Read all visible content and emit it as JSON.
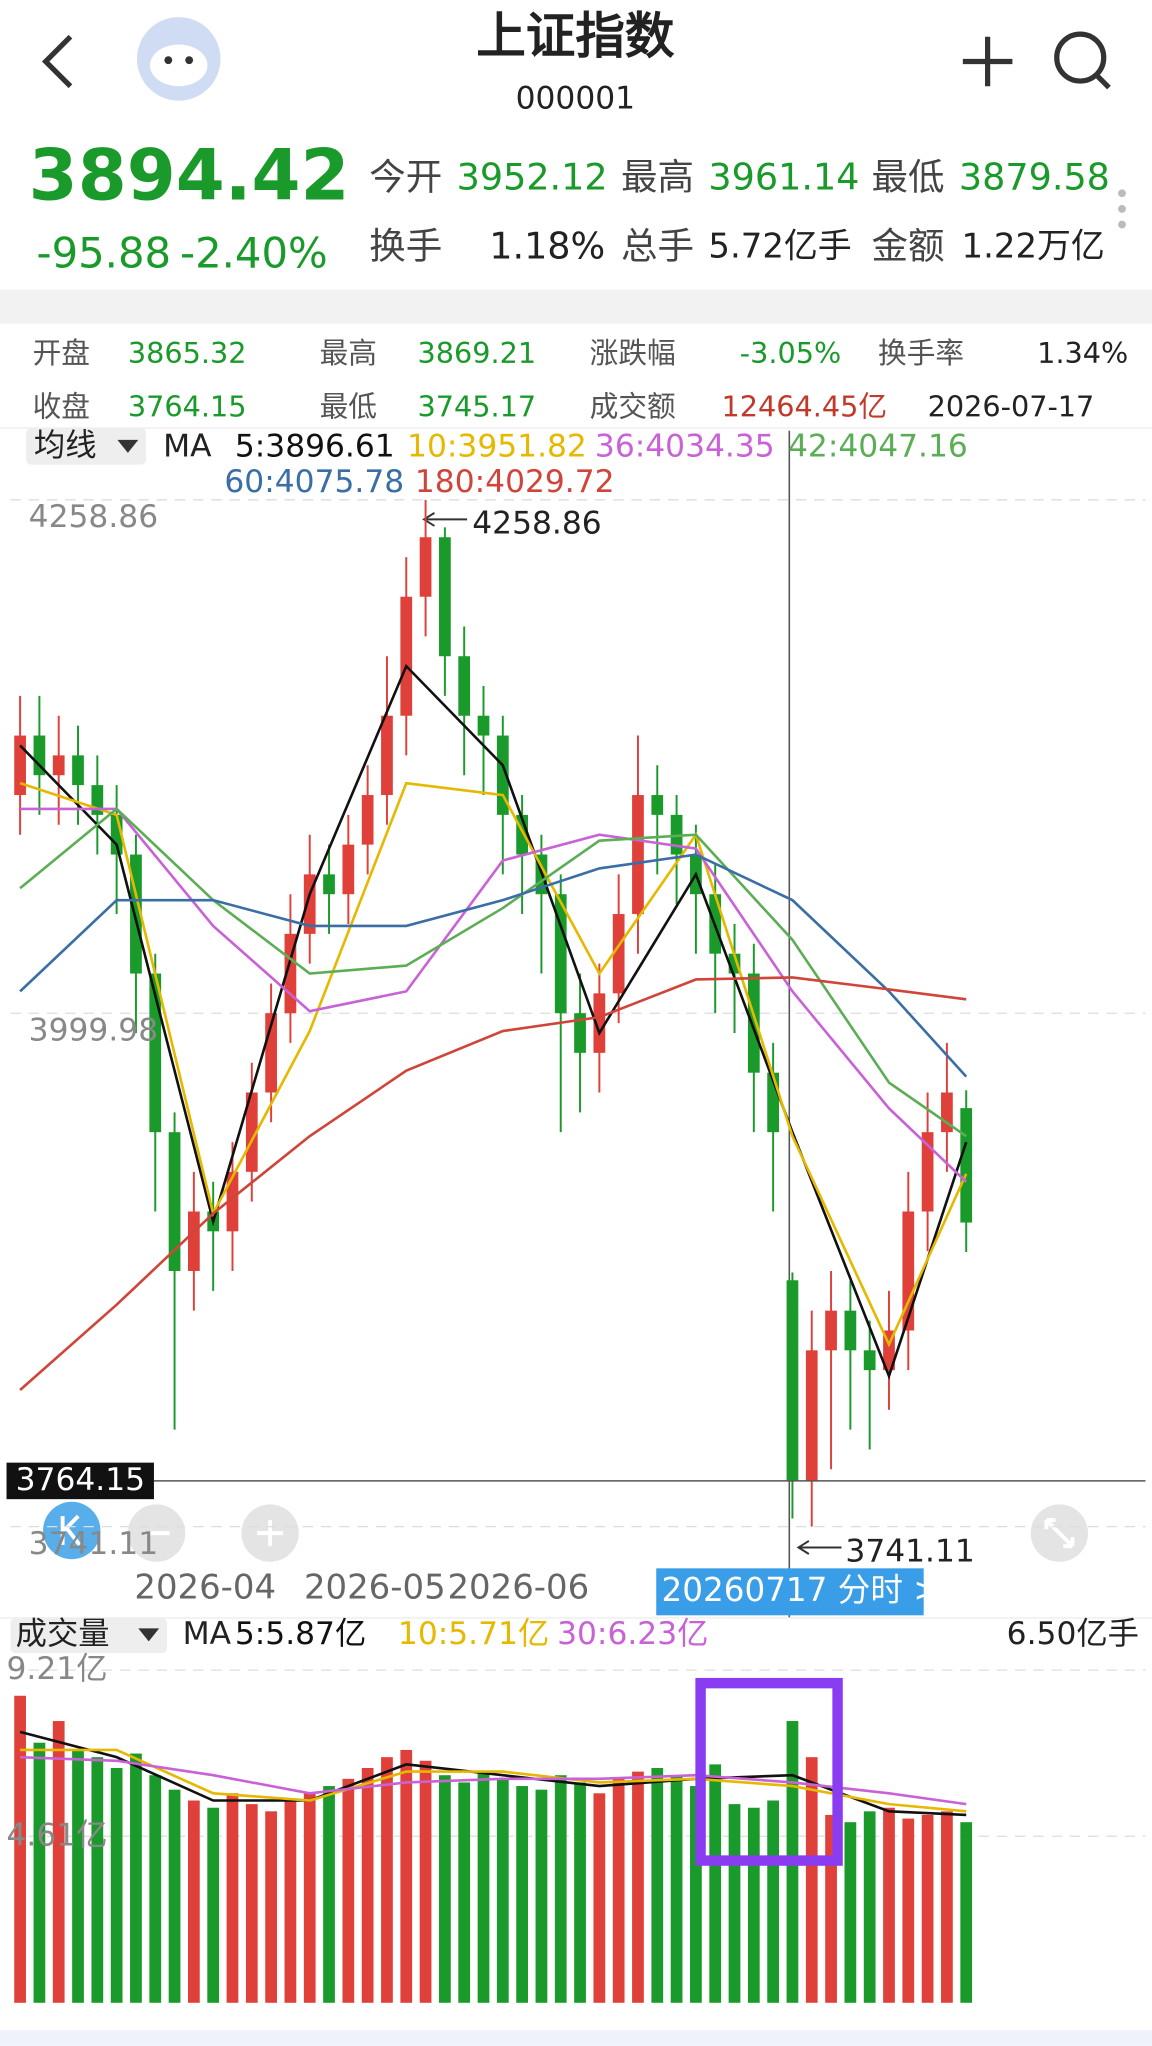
{
  "header": {
    "title": "上证指数",
    "code": "000001"
  },
  "quote": {
    "price": "3894.42",
    "change": "-95.88",
    "change_pct": "-2.40%",
    "stats": [
      {
        "label": "今开",
        "value": "3952.12"
      },
      {
        "label": "最高",
        "value": "3961.14"
      },
      {
        "label": "最低",
        "value": "3879.58"
      },
      {
        "label": "换手",
        "value": "1.18%"
      },
      {
        "label": "总手",
        "value": "5.72亿手"
      },
      {
        "label": "金额",
        "value": "1.22万亿"
      }
    ]
  },
  "day_info": {
    "items": [
      {
        "label": "开盘",
        "value": "3865.32"
      },
      {
        "label": "最高",
        "value": "3869.21"
      },
      {
        "label": "涨跌幅",
        "value": "-3.05%"
      },
      {
        "label": "换手率",
        "value": "1.34%"
      },
      {
        "label": "收盘",
        "value": "3764.15"
      },
      {
        "label": "最低",
        "value": "3745.17"
      },
      {
        "label": "成交额",
        "value": "12464.45亿"
      }
    ],
    "date": "2026-07-17"
  },
  "kline": {
    "type": "candlestick",
    "indicator_button": "均线",
    "ma_title": "MA",
    "ylim": [
      3741.11,
      4258.86
    ],
    "yticks": [
      4258.86,
      3999.98,
      3741.11
    ],
    "open": [
      4110,
      4140,
      4120,
      4130,
      4115,
      4100,
      4080,
      4020,
      3940,
      3870,
      3900,
      3890,
      3920,
      3960,
      4000,
      4040,
      4070,
      4060,
      4085,
      4110,
      4150,
      4210,
      4240,
      4180,
      4150,
      4140,
      4100,
      4080,
      4060,
      4000,
      3980,
      4010,
      4050,
      4110,
      4100,
      4080,
      4060,
      4030,
      4020,
      3970,
      3865.32,
      3764.15,
      3830,
      3850,
      3830,
      3820,
      3840,
      3900,
      3940,
      3952.12
    ],
    "close": [
      4140,
      4120,
      4130,
      4115,
      4100,
      4080,
      4020,
      3940,
      3870,
      3900,
      3890,
      3920,
      3960,
      4000,
      4040,
      4070,
      4060,
      4085,
      4110,
      4150,
      4210,
      4240,
      4180,
      4150,
      4140,
      4100,
      4080,
      4060,
      4000,
      3980,
      4010,
      4050,
      4110,
      4100,
      4080,
      4060,
      4030,
      4020,
      3970,
      3940,
      3764.15,
      3830,
      3850,
      3830,
      3820,
      3840,
      3900,
      3940,
      3960,
      3894.42
    ],
    "high": [
      4160,
      4160,
      4150,
      4145,
      4130,
      4115,
      4090,
      4030,
      3950,
      3920,
      3915,
      3935,
      3975,
      4015,
      4060,
      4090,
      4085,
      4100,
      4125,
      4180,
      4230,
      4258.86,
      4245,
      4195,
      4165,
      4150,
      4110,
      4090,
      4070,
      4020,
      4025,
      4070,
      4140,
      4125,
      4110,
      4095,
      4075,
      4045,
      4035,
      3985,
      3869.21,
      3850,
      3870,
      3865,
      3845,
      3860,
      3920,
      3960,
      3985,
      3961.14
    ],
    "low": [
      4090,
      4100,
      4095,
      4095,
      4080,
      4050,
      3990,
      3900,
      3790,
      3850,
      3860,
      3870,
      3905,
      3945,
      3985,
      4025,
      4040,
      4045,
      4070,
      4095,
      4130,
      4190,
      4160,
      4120,
      4110,
      4070,
      4050,
      4020,
      3940,
      3950,
      3960,
      3995,
      4030,
      4070,
      4055,
      4030,
      4000,
      3990,
      3940,
      3900,
      3745.17,
      3741.11,
      3770,
      3790,
      3780,
      3800,
      3820,
      3880,
      3920,
      3879.58
    ],
    "ma_x": [
      0,
      5,
      10,
      15,
      20,
      25,
      30,
      35,
      40,
      45,
      49
    ],
    "ma": [
      {
        "name": "5:3896.61",
        "color": "#111111",
        "values": [
          4135,
          4085,
          3895,
          4060,
          4175,
          4125,
          3990,
          4070,
          3940,
          3817,
          3935
        ]
      },
      {
        "name": "10:3951.82",
        "color": "#e6b800",
        "values": [
          4116,
          4100,
          3899,
          3991,
          4116,
          4110,
          4020,
          4090,
          3938,
          3833,
          3919
        ]
      },
      {
        "name": "36:4034.35",
        "color": "#c862d6",
        "values": [
          4103,
          4103,
          4044,
          4001,
          4011,
          4077,
          4090,
          4083,
          4011,
          3952,
          3915
        ]
      },
      {
        "name": "42:4047.16",
        "color": "#5cae55",
        "values": [
          4063,
          4103,
          4057,
          4020,
          4024,
          4053,
          4087,
          4090,
          4037,
          3965,
          3938
        ]
      },
      {
        "name": "60:4075.78",
        "color": "#3a6ea5",
        "values": [
          4011,
          4057,
          4057,
          4044,
          4044,
          4057,
          4073,
          4080,
          4057,
          4011,
          3968
        ]
      },
      {
        "name": "180:4029.72",
        "color": "#d0453a",
        "values": [
          3810,
          3853,
          3899,
          3938,
          3971,
          3991,
          3998,
          4017,
          4018,
          4012,
          4007
        ]
      }
    ],
    "high_annotation": "4258.86",
    "low_annotation": "3741.11",
    "price_line": {
      "value": 3764.15,
      "label": "3764.15"
    },
    "date_labels": [
      "2026-04",
      "2026-05",
      "2026-06"
    ],
    "crosshair_label": "20260717 分时 >"
  },
  "volume": {
    "type": "bar",
    "indicator_button": "成交量",
    "ma_title": "MA",
    "total": "6.50亿手",
    "ylim": [
      0,
      9.21
    ],
    "yticks": [
      {
        "value": 9.21,
        "label": "9.21亿"
      },
      {
        "value": 4.61,
        "label": "4.61亿"
      }
    ],
    "values": [
      8.5,
      7.2,
      7.8,
      7.0,
      6.8,
      6.5,
      6.9,
      6.3,
      5.9,
      5.6,
      5.4,
      5.8,
      5.5,
      5.3,
      5.6,
      5.8,
      6.0,
      6.2,
      6.5,
      6.8,
      7.0,
      6.7,
      6.3,
      6.1,
      6.4,
      6.2,
      6.0,
      5.9,
      6.3,
      6.1,
      5.8,
      6.2,
      6.4,
      6.5,
      6.3,
      6.0,
      6.6,
      5.5,
      5.4,
      5.6,
      7.8,
      6.8,
      5.2,
      5.0,
      5.3,
      5.4,
      5.1,
      5.2,
      5.3,
      5.0
    ],
    "ma_x": [
      0,
      5,
      10,
      15,
      20,
      25,
      30,
      35,
      40,
      45,
      49
    ],
    "ma": [
      {
        "name": "5:5.87亿",
        "color": "#111111",
        "values": [
          7.5,
          6.8,
          5.6,
          5.6,
          6.6,
          6.3,
          6.0,
          6.2,
          6.3,
          5.3,
          5.2
        ]
      },
      {
        "name": "10:5.71亿",
        "color": "#e6b800",
        "values": [
          7.0,
          7.0,
          5.8,
          5.6,
          6.4,
          6.4,
          6.1,
          6.2,
          6.0,
          5.5,
          5.3
        ]
      },
      {
        "name": "30:6.23亿",
        "color": "#c862d6",
        "values": [
          6.8,
          6.7,
          6.3,
          5.8,
          6.1,
          6.2,
          6.2,
          6.3,
          6.1,
          5.8,
          5.5
        ]
      }
    ]
  }
}
